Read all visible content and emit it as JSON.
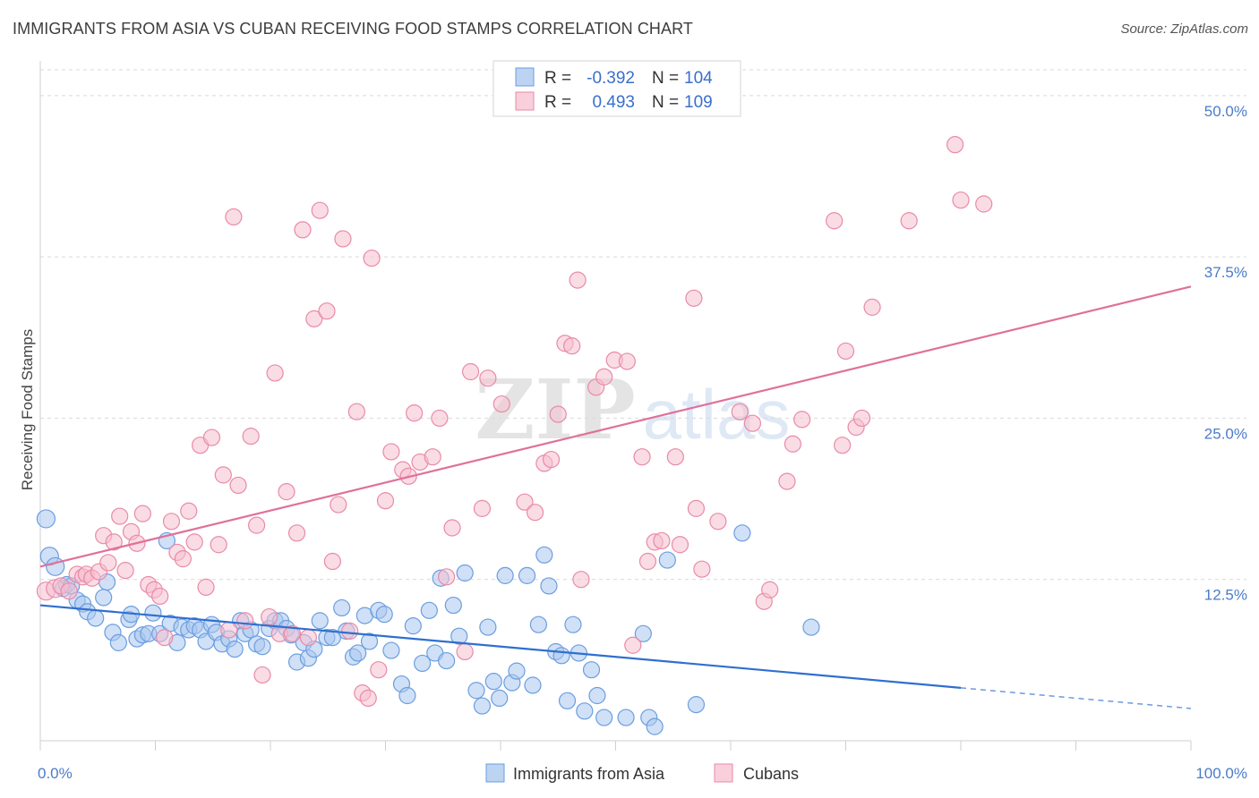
{
  "title": "IMMIGRANTS FROM ASIA VS CUBAN RECEIVING FOOD STAMPS CORRELATION CHART",
  "source": "Source: ZipAtlas.com",
  "colors": {
    "asia_fill": "#a9c7ee",
    "asia_stroke": "#6b9ee0",
    "asia_line": "#2f6fcf",
    "cuba_fill": "#f6bfd0",
    "cuba_stroke": "#e98aa8",
    "cuba_line": "#e0709a",
    "grid": "#d9d9d9",
    "axis_text": "#4a7cc9"
  },
  "legend": {
    "r_label": "R =",
    "n_label": "N =",
    "asia_r": "-0.392",
    "asia_n": "104",
    "cuba_r": "0.493",
    "cuba_n": "109"
  },
  "chart_data": {
    "type": "scatter",
    "title": "IMMIGRANTS FROM ASIA VS CUBAN RECEIVING FOOD STAMPS CORRELATION CHART",
    "xlabel": "",
    "ylabel": "Receiving Food Stamps",
    "xlim": [
      0,
      100
    ],
    "ylim": [
      0,
      52
    ],
    "x_tick_labels": [
      "0.0%",
      "100.0%"
    ],
    "y_ticks": [
      12.5,
      25.0,
      37.5,
      50.0
    ],
    "y_tick_labels": [
      "12.5%",
      "25.0%",
      "37.5%",
      "50.0%"
    ],
    "grid": true,
    "legend_position": "top-center",
    "series": [
      {
        "name": "Immigrants from Asia",
        "trend": {
          "x": [
            0,
            80
          ],
          "y": [
            10.5,
            4.1
          ],
          "dashed_to": [
            100,
            2.5
          ]
        },
        "points": [
          [
            0.5,
            17.2
          ],
          [
            0.8,
            14.3
          ],
          [
            1.3,
            13.5
          ],
          [
            2.0,
            11.8
          ],
          [
            2.3,
            12.1
          ],
          [
            2.7,
            12.0
          ],
          [
            3.2,
            10.9
          ],
          [
            3.7,
            10.6
          ],
          [
            4.1,
            10.0
          ],
          [
            4.8,
            9.5
          ],
          [
            5.5,
            11.1
          ],
          [
            5.8,
            12.3
          ],
          [
            6.3,
            8.4
          ],
          [
            6.8,
            7.6
          ],
          [
            7.7,
            9.4
          ],
          [
            7.9,
            9.8
          ],
          [
            8.4,
            7.9
          ],
          [
            8.9,
            8.2
          ],
          [
            9.4,
            8.3
          ],
          [
            9.8,
            9.9
          ],
          [
            10.4,
            8.3
          ],
          [
            11.0,
            15.5
          ],
          [
            11.3,
            9.1
          ],
          [
            11.9,
            7.6
          ],
          [
            12.3,
            8.8
          ],
          [
            12.9,
            8.6
          ],
          [
            13.4,
            8.9
          ],
          [
            13.9,
            8.6
          ],
          [
            14.4,
            7.7
          ],
          [
            14.9,
            9.0
          ],
          [
            15.3,
            8.4
          ],
          [
            15.8,
            7.5
          ],
          [
            16.4,
            7.9
          ],
          [
            16.9,
            7.1
          ],
          [
            17.4,
            9.3
          ],
          [
            17.8,
            8.3
          ],
          [
            18.3,
            8.6
          ],
          [
            18.8,
            7.5
          ],
          [
            19.3,
            7.3
          ],
          [
            19.9,
            8.7
          ],
          [
            20.4,
            9.3
          ],
          [
            20.9,
            9.3
          ],
          [
            21.4,
            8.7
          ],
          [
            21.8,
            8.2
          ],
          [
            22.3,
            6.1
          ],
          [
            22.9,
            7.6
          ],
          [
            23.3,
            6.4
          ],
          [
            23.8,
            7.1
          ],
          [
            24.3,
            9.3
          ],
          [
            24.9,
            8.0
          ],
          [
            25.4,
            8.0
          ],
          [
            26.2,
            10.3
          ],
          [
            26.6,
            8.5
          ],
          [
            27.2,
            6.5
          ],
          [
            27.6,
            6.8
          ],
          [
            28.2,
            9.7
          ],
          [
            28.6,
            7.7
          ],
          [
            29.4,
            10.1
          ],
          [
            29.9,
            9.8
          ],
          [
            30.5,
            7.0
          ],
          [
            31.4,
            4.4
          ],
          [
            31.9,
            3.5
          ],
          [
            32.4,
            8.9
          ],
          [
            33.2,
            6.0
          ],
          [
            33.8,
            10.1
          ],
          [
            34.3,
            6.8
          ],
          [
            34.8,
            12.6
          ],
          [
            35.3,
            6.2
          ],
          [
            35.9,
            10.5
          ],
          [
            36.4,
            8.1
          ],
          [
            36.9,
            13.0
          ],
          [
            37.9,
            3.9
          ],
          [
            38.4,
            2.7
          ],
          [
            38.9,
            8.8
          ],
          [
            39.4,
            4.6
          ],
          [
            39.9,
            3.3
          ],
          [
            40.4,
            12.8
          ],
          [
            41.0,
            4.5
          ],
          [
            41.4,
            5.4
          ],
          [
            42.3,
            12.8
          ],
          [
            42.8,
            4.3
          ],
          [
            43.3,
            9.0
          ],
          [
            43.8,
            14.4
          ],
          [
            44.2,
            12.0
          ],
          [
            44.8,
            6.9
          ],
          [
            45.3,
            6.6
          ],
          [
            45.8,
            3.1
          ],
          [
            46.3,
            9.0
          ],
          [
            46.8,
            6.8
          ],
          [
            47.3,
            2.3
          ],
          [
            47.9,
            5.5
          ],
          [
            48.4,
            3.5
          ],
          [
            49.0,
            1.8
          ],
          [
            50.9,
            1.8
          ],
          [
            52.4,
            8.3
          ],
          [
            52.9,
            1.8
          ],
          [
            53.4,
            1.1
          ],
          [
            54.5,
            14.0
          ],
          [
            57.0,
            2.8
          ],
          [
            61.0,
            16.1
          ],
          [
            67.0,
            8.8
          ]
        ]
      },
      {
        "name": "Cubans",
        "trend": {
          "x": [
            0,
            100
          ],
          "y": [
            13.5,
            35.2
          ]
        },
        "points": [
          [
            0.5,
            11.6
          ],
          [
            1.3,
            11.8
          ],
          [
            1.8,
            12.0
          ],
          [
            2.5,
            11.6
          ],
          [
            3.2,
            12.9
          ],
          [
            3.7,
            12.7
          ],
          [
            4.0,
            12.9
          ],
          [
            4.5,
            12.6
          ],
          [
            5.1,
            13.1
          ],
          [
            5.5,
            15.9
          ],
          [
            5.9,
            13.8
          ],
          [
            6.4,
            15.4
          ],
          [
            6.9,
            17.4
          ],
          [
            7.4,
            13.2
          ],
          [
            7.9,
            16.2
          ],
          [
            8.4,
            15.3
          ],
          [
            8.9,
            17.6
          ],
          [
            9.4,
            12.1
          ],
          [
            9.9,
            11.7
          ],
          [
            10.4,
            11.2
          ],
          [
            10.8,
            8.0
          ],
          [
            11.4,
            17.0
          ],
          [
            11.9,
            14.6
          ],
          [
            12.4,
            14.1
          ],
          [
            12.9,
            17.8
          ],
          [
            13.4,
            15.4
          ],
          [
            13.9,
            22.9
          ],
          [
            14.4,
            11.9
          ],
          [
            14.9,
            23.5
          ],
          [
            15.5,
            15.2
          ],
          [
            15.9,
            20.6
          ],
          [
            16.4,
            8.6
          ],
          [
            16.8,
            40.6
          ],
          [
            17.2,
            19.8
          ],
          [
            17.8,
            9.3
          ],
          [
            18.3,
            23.6
          ],
          [
            18.8,
            16.7
          ],
          [
            19.3,
            5.1
          ],
          [
            19.9,
            9.6
          ],
          [
            20.4,
            28.5
          ],
          [
            20.8,
            8.3
          ],
          [
            21.4,
            19.3
          ],
          [
            21.9,
            8.3
          ],
          [
            22.3,
            16.1
          ],
          [
            22.8,
            39.6
          ],
          [
            23.3,
            8.0
          ],
          [
            23.8,
            32.7
          ],
          [
            24.3,
            41.1
          ],
          [
            24.9,
            33.3
          ],
          [
            25.4,
            13.9
          ],
          [
            25.9,
            18.3
          ],
          [
            26.3,
            38.9
          ],
          [
            26.9,
            8.5
          ],
          [
            27.5,
            25.5
          ],
          [
            28.0,
            3.7
          ],
          [
            28.5,
            3.3
          ],
          [
            28.8,
            37.4
          ],
          [
            29.4,
            5.5
          ],
          [
            30.0,
            18.6
          ],
          [
            30.5,
            22.4
          ],
          [
            31.5,
            21.0
          ],
          [
            32.0,
            20.5
          ],
          [
            32.5,
            25.4
          ],
          [
            33.0,
            21.6
          ],
          [
            34.1,
            22.0
          ],
          [
            34.7,
            25.0
          ],
          [
            35.3,
            12.7
          ],
          [
            35.8,
            16.5
          ],
          [
            36.9,
            6.9
          ],
          [
            37.4,
            28.6
          ],
          [
            38.4,
            18.0
          ],
          [
            38.9,
            28.1
          ],
          [
            40.1,
            26.1
          ],
          [
            42.1,
            18.5
          ],
          [
            43.0,
            17.7
          ],
          [
            43.8,
            21.5
          ],
          [
            44.4,
            21.8
          ],
          [
            45.0,
            25.3
          ],
          [
            45.6,
            30.8
          ],
          [
            46.2,
            30.6
          ],
          [
            46.7,
            35.7
          ],
          [
            47.0,
            12.5
          ],
          [
            48.3,
            27.4
          ],
          [
            49.0,
            28.2
          ],
          [
            49.9,
            29.5
          ],
          [
            51.0,
            29.4
          ],
          [
            51.5,
            7.4
          ],
          [
            52.3,
            22.0
          ],
          [
            52.8,
            13.9
          ],
          [
            53.4,
            15.4
          ],
          [
            54.0,
            15.5
          ],
          [
            55.2,
            22.0
          ],
          [
            55.6,
            15.2
          ],
          [
            56.8,
            34.3
          ],
          [
            57.0,
            18.0
          ],
          [
            57.5,
            13.3
          ],
          [
            58.9,
            17.0
          ],
          [
            60.8,
            25.5
          ],
          [
            61.9,
            24.6
          ],
          [
            62.9,
            10.8
          ],
          [
            63.4,
            11.7
          ],
          [
            64.9,
            20.1
          ],
          [
            65.4,
            23.0
          ],
          [
            66.2,
            24.9
          ],
          [
            69.0,
            40.3
          ],
          [
            69.7,
            22.9
          ],
          [
            70.0,
            30.2
          ],
          [
            70.9,
            24.3
          ],
          [
            71.4,
            25.0
          ],
          [
            72.3,
            33.6
          ],
          [
            75.5,
            40.3
          ],
          [
            79.5,
            46.2
          ],
          [
            80.0,
            41.9
          ],
          [
            82.0,
            41.6
          ]
        ]
      }
    ]
  },
  "bottom_legend": {
    "asia_label": "Immigrants from Asia",
    "cuba_label": "Cubans"
  },
  "watermark": {
    "zip": "ZIP",
    "atlas": "atlas"
  }
}
